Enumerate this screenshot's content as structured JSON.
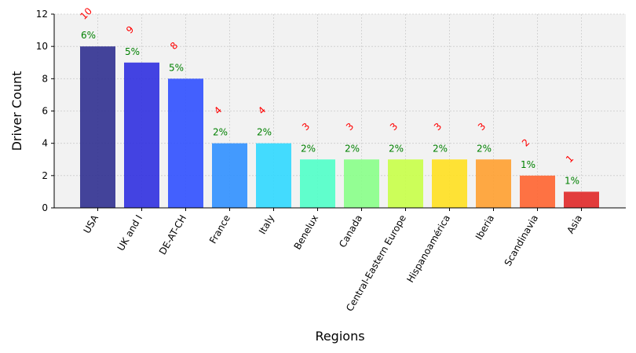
{
  "chart_data": {
    "type": "bar",
    "xlabel": "Regions",
    "ylabel": "Driver Count",
    "ylim": [
      0,
      12
    ],
    "yticks": [
      0,
      2,
      4,
      6,
      8,
      10,
      12
    ],
    "grid": true,
    "categories": [
      "USA",
      "UK and I",
      "DE-AT-CH",
      "France",
      "Italy",
      "Benelux",
      "Canada",
      "Central-Eastern Europe",
      "Hispanoamérica",
      "Iberia",
      "Scandinavia",
      "Asia"
    ],
    "values": [
      10,
      9,
      8,
      4,
      4,
      3,
      3,
      3,
      3,
      3,
      2,
      1
    ],
    "count_labels": [
      "10",
      "9",
      "8",
      "4",
      "4",
      "3",
      "3",
      "3",
      "3",
      "3",
      "2",
      "1"
    ],
    "percent_labels": [
      "6%",
      "5%",
      "5%",
      "2%",
      "2%",
      "2%",
      "2%",
      "2%",
      "2%",
      "2%",
      "1%",
      "1%"
    ],
    "colors": [
      "#303090",
      "#3030e0",
      "#3050ff",
      "#3090ff",
      "#30d8ff",
      "#50ffc8",
      "#88ff88",
      "#c8ff48",
      "#ffe020",
      "#ffa030",
      "#ff6430",
      "#e02828"
    ],
    "count_label_color": "#ff0000",
    "percent_label_color": "#008000",
    "plot_background": "#f2f2f2"
  }
}
